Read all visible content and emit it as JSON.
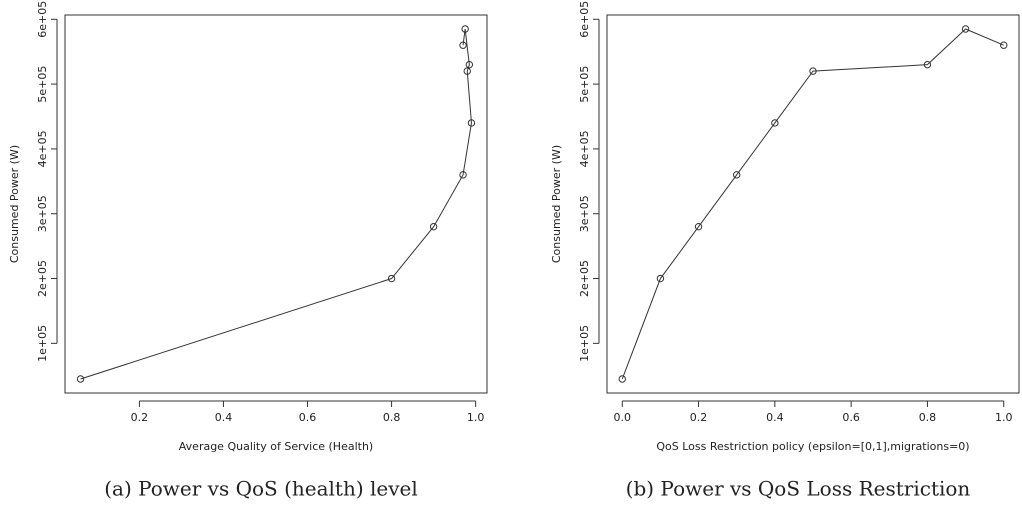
{
  "chart_data": [
    {
      "type": "line",
      "caption": "(a) Power vs QoS (health) level",
      "xlabel": "Average Quality of Service (Health)",
      "ylabel": "Consumed Power (W)",
      "x": [
        0.06,
        0.8,
        0.9,
        0.97,
        0.99,
        0.98,
        0.985,
        0.975,
        0.97
      ],
      "values": [
        45000,
        200000,
        280000,
        360000,
        440000,
        520000,
        530000,
        585000,
        560000
      ],
      "color": "#333333",
      "xlim": [
        0.023,
        1.027
      ],
      "ylim": [
        23400,
        606600
      ],
      "xticks": [
        0.2,
        0.4,
        0.6,
        0.8,
        {
          "value": 1,
          "label": "1.0"
        }
      ],
      "yticks": [
        {
          "value": 100000,
          "label": "1e+05"
        },
        {
          "value": 200000,
          "label": "2e+05"
        },
        {
          "value": 300000,
          "label": "3e+05"
        },
        {
          "value": 400000,
          "label": "4e+05"
        },
        {
          "value": 500000,
          "label": "5e+05"
        },
        {
          "value": 600000,
          "label": "6e+05"
        }
      ]
    },
    {
      "type": "line",
      "caption": "(b) Power vs QoS Loss Restriction",
      "xlabel": "QoS Loss Restriction policy (epsilon=[0,1],migrations=0)",
      "ylabel": "Consumed Power (W)",
      "x": [
        0,
        0.1,
        0.2,
        0.3,
        0.4,
        0.5,
        0.8,
        0.9,
        1
      ],
      "values": [
        45000,
        200000,
        280000,
        360000,
        440000,
        520000,
        530000,
        585000,
        560000
      ],
      "color": "#333333",
      "xlim": [
        -0.04,
        1.04
      ],
      "ylim": [
        23400,
        606600
      ],
      "xticks": [
        {
          "value": 0,
          "label": "0.0"
        },
        0.2,
        0.4,
        0.6,
        0.8,
        {
          "value": 1,
          "label": "1.0"
        }
      ],
      "yticks": [
        {
          "value": 100000,
          "label": "1e+05"
        },
        {
          "value": 200000,
          "label": "2e+05"
        },
        {
          "value": 300000,
          "label": "3e+05"
        },
        {
          "value": 400000,
          "label": "4e+05"
        },
        {
          "value": 500000,
          "label": "5e+05"
        },
        {
          "value": 600000,
          "label": "6e+05"
        }
      ]
    }
  ]
}
